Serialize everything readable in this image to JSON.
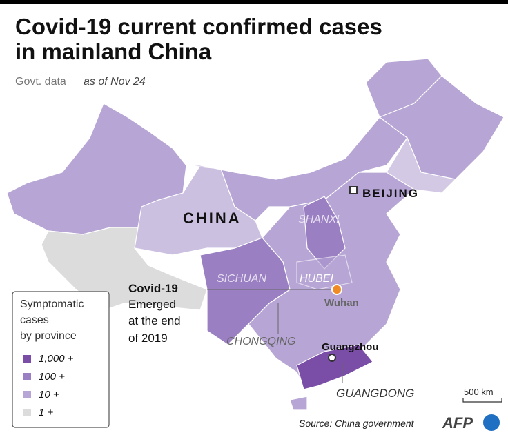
{
  "header": {
    "title": [
      "Covid-19 current confirmed cases",
      "in mainland China"
    ],
    "subtitle": "Govt. data",
    "date": "as of Nov 24"
  },
  "legend": {
    "title": [
      "Symptomatic",
      "cases",
      "by province"
    ],
    "items": [
      {
        "label": "1,000 +",
        "color": "#7a4ea6"
      },
      {
        "label": "100 +",
        "color": "#9a80c2"
      },
      {
        "label": "10 +",
        "color": "#b7a6d5"
      },
      {
        "label": "1 +",
        "color": "#dcdcdc"
      }
    ]
  },
  "map_labels": {
    "beijing": "BEIJING",
    "china": "CHINA",
    "shanxi": "SHANXI",
    "sichuan": "SICHUAN",
    "hubei": "HUBEI",
    "wuhan": "Wuhan",
    "chongqing": "CHONGQING",
    "guangzhou": "Guangzhou",
    "guangdong": "GUANGDONG"
  },
  "annotation": {
    "title": "Covid-19",
    "lines": [
      "Emerged",
      "at the end",
      "of 2019"
    ]
  },
  "scale": "500 km",
  "source": "Source: China government",
  "logo": "AFP"
}
